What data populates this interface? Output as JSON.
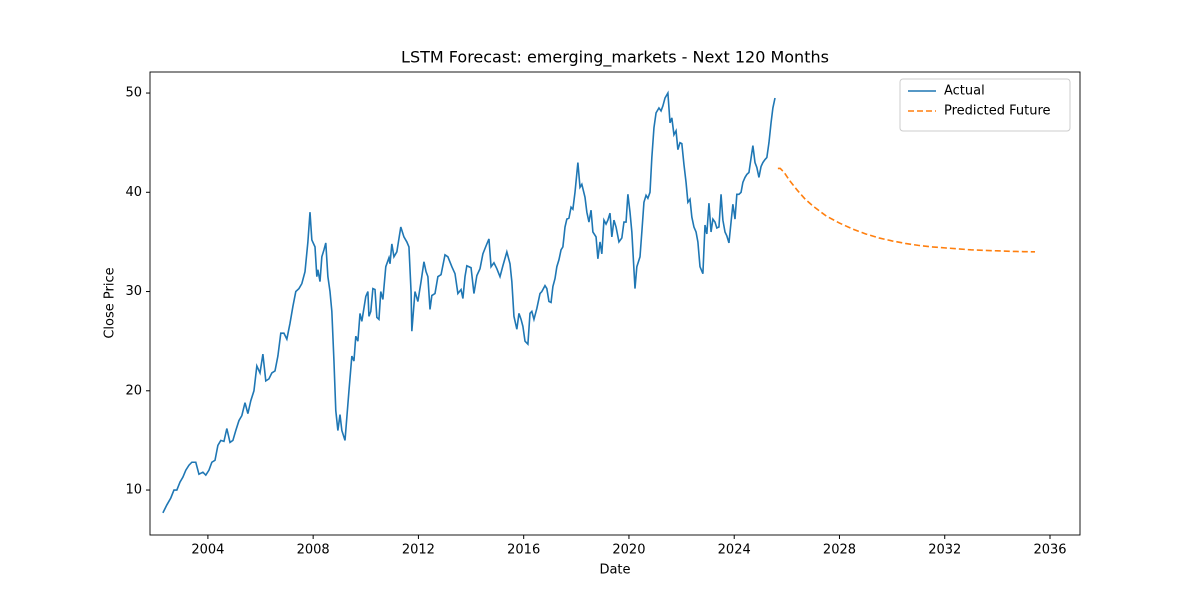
{
  "chart_data": {
    "type": "line",
    "title": "LSTM Forecast: emerging_markets - Next 120 Months",
    "x_label": "Date",
    "y_label": "Close Price",
    "xlim": [
      2001.8,
      2037.14
    ],
    "xticks": [
      2004,
      2008,
      2012,
      2016,
      2020,
      2024,
      2028,
      2032,
      2036
    ],
    "ylim": [
      5.47,
      52.12
    ],
    "yticks": [
      10,
      20,
      30,
      40,
      50
    ],
    "grid": false,
    "legend": "upper right",
    "series": [
      {
        "name": "Actual",
        "color": "#1f77b4",
        "linestyle": "solid",
        "x": [
          2002.29,
          2002.44,
          2002.59,
          2002.71,
          2002.82,
          2002.94,
          2003.05,
          2003.16,
          2003.28,
          2003.39,
          2003.54,
          2003.66,
          2003.81,
          2003.92,
          2004.04,
          2004.15,
          2004.27,
          2004.38,
          2004.49,
          2004.61,
          2004.72,
          2004.84,
          2004.95,
          2005.06,
          2005.18,
          2005.29,
          2005.41,
          2005.52,
          2005.63,
          2005.75,
          2005.86,
          2005.98,
          2006.09,
          2006.2,
          2006.32,
          2006.43,
          2006.55,
          2006.66,
          2006.77,
          2006.89,
          2007.0,
          2007.12,
          2007.23,
          2007.34,
          2007.46,
          2007.57,
          2007.69,
          2007.8,
          2007.88,
          2007.95,
          2008.07,
          2008.14,
          2008.18,
          2008.26,
          2008.33,
          2008.41,
          2008.48,
          2008.56,
          2008.64,
          2008.71,
          2008.79,
          2008.86,
          2008.94,
          2009.02,
          2009.09,
          2009.21,
          2009.36,
          2009.47,
          2009.55,
          2009.62,
          2009.7,
          2009.78,
          2009.85,
          2010.0,
          2010.08,
          2010.12,
          2010.19,
          2010.27,
          2010.35,
          2010.42,
          2010.5,
          2010.57,
          2010.65,
          2010.76,
          2010.88,
          2010.92,
          2010.99,
          2011.07,
          2011.18,
          2011.33,
          2011.45,
          2011.56,
          2011.64,
          2011.72,
          2011.75,
          2011.87,
          2011.98,
          2012.1,
          2012.21,
          2012.29,
          2012.36,
          2012.44,
          2012.51,
          2012.63,
          2012.74,
          2012.86,
          2013.01,
          2013.12,
          2013.27,
          2013.39,
          2013.5,
          2013.62,
          2013.69,
          2013.77,
          2013.84,
          2014.0,
          2014.11,
          2014.22,
          2014.34,
          2014.45,
          2014.57,
          2014.68,
          2014.76,
          2014.87,
          2014.98,
          2015.1,
          2015.21,
          2015.36,
          2015.48,
          2015.55,
          2015.63,
          2015.74,
          2015.82,
          2015.9,
          2015.97,
          2016.05,
          2016.16,
          2016.24,
          2016.31,
          2016.39,
          2016.5,
          2016.62,
          2016.69,
          2016.81,
          2016.88,
          2016.96,
          2017.04,
          2017.11,
          2017.19,
          2017.26,
          2017.34,
          2017.42,
          2017.49,
          2017.57,
          2017.64,
          2017.72,
          2017.8,
          2017.87,
          2017.95,
          2018.06,
          2018.14,
          2018.21,
          2018.33,
          2018.4,
          2018.48,
          2018.56,
          2018.63,
          2018.75,
          2018.82,
          2018.9,
          2018.97,
          2019.05,
          2019.13,
          2019.2,
          2019.28,
          2019.35,
          2019.43,
          2019.51,
          2019.62,
          2019.73,
          2019.81,
          2019.89,
          2019.96,
          2020.04,
          2020.11,
          2020.23,
          2020.3,
          2020.42,
          2020.49,
          2020.57,
          2020.65,
          2020.72,
          2020.8,
          2020.87,
          2020.95,
          2021.03,
          2021.14,
          2021.22,
          2021.29,
          2021.37,
          2021.48,
          2021.56,
          2021.63,
          2021.71,
          2021.79,
          2021.86,
          2021.94,
          2022.01,
          2022.09,
          2022.17,
          2022.24,
          2022.32,
          2022.39,
          2022.47,
          2022.55,
          2022.62,
          2022.7,
          2022.81,
          2022.89,
          2022.96,
          2023.04,
          2023.12,
          2023.19,
          2023.27,
          2023.34,
          2023.42,
          2023.5,
          2023.57,
          2023.65,
          2023.72,
          2023.8,
          2023.88,
          2023.95,
          2024.03,
          2024.1,
          2024.18,
          2024.26,
          2024.33,
          2024.41,
          2024.48,
          2024.56,
          2024.71,
          2024.79,
          2024.86,
          2024.94,
          2025.02,
          2025.09,
          2025.17,
          2025.24,
          2025.32,
          2025.4,
          2025.47,
          2025.55
        ],
        "values": [
          7.7,
          8.5,
          9.2,
          10.0,
          10.0,
          10.8,
          11.3,
          12.0,
          12.5,
          12.8,
          12.8,
          11.6,
          11.8,
          11.5,
          12.0,
          12.8,
          13.0,
          14.5,
          15.0,
          14.9,
          16.2,
          14.8,
          15.0,
          16.0,
          17.0,
          17.5,
          18.8,
          17.7,
          19.0,
          20.0,
          22.5,
          21.8,
          23.7,
          21.0,
          21.2,
          21.8,
          22.0,
          23.5,
          25.8,
          25.8,
          25.2,
          26.8,
          28.5,
          30.0,
          30.3,
          30.8,
          32.0,
          35.0,
          38.0,
          35.2,
          34.5,
          31.5,
          32.2,
          31.0,
          33.5,
          34.2,
          34.9,
          31.5,
          30.0,
          28.0,
          23.0,
          18.0,
          16.0,
          17.6,
          16.0,
          15.0,
          20.0,
          23.5,
          23.0,
          25.5,
          25.0,
          27.8,
          27.0,
          29.5,
          30.0,
          27.5,
          28.0,
          30.3,
          30.2,
          27.4,
          27.2,
          30.0,
          29.2,
          32.5,
          33.4,
          32.8,
          34.8,
          33.5,
          34.0,
          36.5,
          35.5,
          35.0,
          34.5,
          30.0,
          26.0,
          30.0,
          29.0,
          31.0,
          33.0,
          32.0,
          31.5,
          28.2,
          29.6,
          29.8,
          31.5,
          31.7,
          33.7,
          33.5,
          32.5,
          31.8,
          29.8,
          30.2,
          29.3,
          31.5,
          32.6,
          32.4,
          29.8,
          31.6,
          32.3,
          33.8,
          34.6,
          35.3,
          32.5,
          32.9,
          32.3,
          31.5,
          32.6,
          34.0,
          32.8,
          31.0,
          27.5,
          26.2,
          27.8,
          27.2,
          26.5,
          25.0,
          24.7,
          27.8,
          28.0,
          27.2,
          28.3,
          29.8,
          30.0,
          30.6,
          30.3,
          29.0,
          28.9,
          30.5,
          31.3,
          32.5,
          33.2,
          34.2,
          34.5,
          36.5,
          37.3,
          37.4,
          38.5,
          38.3,
          40.0,
          43.0,
          40.5,
          40.8,
          39.5,
          38.0,
          37.0,
          38.2,
          36.0,
          35.5,
          33.3,
          35.0,
          33.8,
          37.2,
          36.8,
          37.2,
          37.9,
          35.5,
          37.2,
          36.5,
          35.0,
          35.4,
          37.0,
          37.0,
          39.8,
          38.0,
          36.0,
          30.3,
          32.5,
          33.5,
          36.0,
          39.0,
          39.7,
          39.4,
          40.0,
          43.5,
          46.5,
          48.0,
          48.5,
          48.2,
          48.7,
          49.5,
          50.0,
          47.0,
          47.5,
          45.8,
          46.2,
          44.3,
          45.0,
          44.9,
          42.8,
          41.0,
          39.0,
          39.3,
          37.5,
          36.5,
          36.0,
          35.0,
          32.5,
          31.8,
          36.7,
          35.8,
          38.9,
          36.0,
          37.3,
          37.0,
          36.4,
          36.5,
          39.8,
          37.2,
          36.0,
          35.6,
          34.9,
          37.0,
          38.8,
          37.3,
          39.8,
          39.8,
          40.0,
          41.0,
          41.5,
          41.8,
          42.0,
          44.7,
          43.0,
          42.5,
          41.5,
          42.6,
          43.0,
          43.3,
          43.5,
          45.0,
          47.0,
          48.5,
          49.5
        ]
      },
      {
        "name": "Predicted Future",
        "color": "#ff7f0e",
        "linestyle": "dashed",
        "x": [
          2025.66,
          2025.75,
          2025.9,
          2026.1,
          2026.4,
          2026.7,
          2027.0,
          2027.5,
          2028.0,
          2028.5,
          2029.0,
          2029.5,
          2030.0,
          2030.5,
          2031.0,
          2031.5,
          2032.0,
          2032.5,
          2033.0,
          2033.5,
          2034.0,
          2034.5,
          2035.0,
          2035.43
        ],
        "values": [
          42.4,
          42.4,
          42.0,
          41.2,
          40.2,
          39.3,
          38.6,
          37.6,
          36.9,
          36.3,
          35.8,
          35.4,
          35.1,
          34.85,
          34.65,
          34.5,
          34.4,
          34.3,
          34.2,
          34.15,
          34.1,
          34.05,
          34.02,
          34.0
        ]
      }
    ]
  }
}
